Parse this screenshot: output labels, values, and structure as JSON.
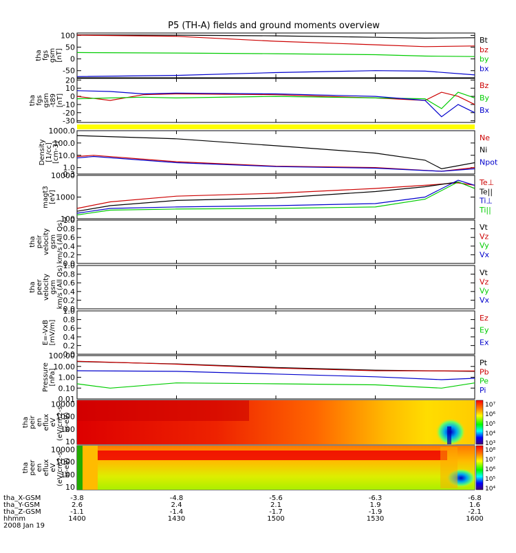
{
  "title": "P5 (TH-A) fields and ground moments overview",
  "chart_data": [
    {
      "id": "fgs_gsm",
      "type": "line",
      "ylabel": [
        "tha",
        "fgs",
        "gsm",
        "[nT]"
      ],
      "ylim": [
        -80,
        110
      ],
      "yticks": [
        100,
        50,
        0,
        -50
      ],
      "yticklabels": [
        "100",
        "50",
        "0",
        "-50"
      ],
      "series": [
        {
          "name": "Bt",
          "color": "#000000",
          "x": [
            1400,
            1430,
            1500,
            1530,
            1545,
            1600
          ],
          "values": [
            102,
            101,
            98,
            92,
            88,
            90
          ]
        },
        {
          "name": "bz",
          "color": "#cc0000",
          "x": [
            1400,
            1430,
            1500,
            1530,
            1545,
            1600
          ],
          "values": [
            101,
            96,
            75,
            60,
            52,
            55
          ]
        },
        {
          "name": "by",
          "color": "#00cc00",
          "x": [
            1400,
            1430,
            1500,
            1530,
            1545,
            1600
          ],
          "values": [
            27,
            25,
            22,
            18,
            12,
            10
          ]
        },
        {
          "name": "bx",
          "color": "#0000cc",
          "x": [
            1400,
            1430,
            1500,
            1530,
            1545,
            1600
          ],
          "values": [
            -75,
            -70,
            -58,
            -50,
            -52,
            -68
          ]
        }
      ]
    },
    {
      "id": "fgs_gsm_t89",
      "type": "line",
      "ylabel": [
        "tha",
        "fgs",
        "gsm",
        "-t89",
        "[nT]"
      ],
      "ylim": [
        -32,
        22
      ],
      "yticks": [
        20,
        10,
        0,
        -10,
        -20,
        -30
      ],
      "yticklabels": [
        "20",
        "10",
        "0",
        "-10",
        "-20",
        "-30"
      ],
      "series": [
        {
          "name": "Bz",
          "color": "#cc0000",
          "x": [
            1400,
            1410,
            1420,
            1430,
            1500,
            1530,
            1545,
            1550,
            1555,
            1600
          ],
          "values": [
            0,
            -5,
            2,
            3,
            2,
            -2,
            -5,
            5,
            0,
            -10
          ]
        },
        {
          "name": "By",
          "color": "#00cc00",
          "x": [
            1400,
            1410,
            1420,
            1430,
            1500,
            1530,
            1545,
            1550,
            1555,
            1600
          ],
          "values": [
            -3,
            -2,
            -1,
            -2,
            0,
            -2,
            -3,
            -15,
            5,
            -2
          ]
        },
        {
          "name": "Bx",
          "color": "#0000cc",
          "x": [
            1400,
            1410,
            1420,
            1430,
            1500,
            1530,
            1545,
            1550,
            1555,
            1600
          ],
          "values": [
            7,
            6,
            3,
            4,
            3,
            0,
            -5,
            -25,
            -10,
            -20
          ]
        }
      ]
    },
    {
      "id": "density",
      "type": "line",
      "log": true,
      "ylabel": [
        "Density",
        "[1/cc]",
        "[cm-3]"
      ],
      "ylim": [
        0.3,
        1000
      ],
      "yticks": [
        1000,
        100,
        10,
        1,
        0.3
      ],
      "yticklabels": [
        "1000.0",
        "100.0",
        "10.0",
        "1.0",
        "0.3"
      ],
      "series": [
        {
          "name": "Ne",
          "color": "#cc0000",
          "x": [
            1400,
            1405,
            1430,
            1500,
            1530,
            1550,
            1600
          ],
          "values": [
            8,
            10,
            3,
            1.3,
            1.0,
            0.5,
            1.0
          ]
        },
        {
          "name": "Ni",
          "color": "#000000",
          "x": [
            1400,
            1430,
            1500,
            1530,
            1545,
            1550,
            1600
          ],
          "values": [
            400,
            220,
            60,
            15,
            4,
            0.8,
            2.5
          ]
        },
        {
          "name": "Npot",
          "color": "#0000cc",
          "x": [
            1400,
            1405,
            1430,
            1500,
            1530,
            1550,
            1600
          ],
          "values": [
            6,
            8,
            2.5,
            1.2,
            0.9,
            0.5,
            0.8
          ]
        }
      ]
    },
    {
      "id": "temperature",
      "type": "line",
      "log": true,
      "ylabel": [
        "magt3",
        "[eV]"
      ],
      "ylim": [
        100,
        10000
      ],
      "yticks": [
        10000,
        1000,
        100
      ],
      "yticklabels": [
        "10000",
        "1000",
        "100"
      ],
      "series": [
        {
          "name": "Te⊥",
          "color": "#cc0000",
          "x": [
            1400,
            1410,
            1430,
            1500,
            1530,
            1545,
            1555,
            1600
          ],
          "values": [
            300,
            600,
            1100,
            1500,
            2500,
            3500,
            4500,
            3500
          ]
        },
        {
          "name": "Te||",
          "color": "#000000",
          "x": [
            1400,
            1410,
            1430,
            1500,
            1530,
            1545,
            1555,
            1600
          ],
          "values": [
            220,
            400,
            700,
            900,
            1800,
            3000,
            5000,
            2500
          ]
        },
        {
          "name": "Ti⊥",
          "color": "#0000cc",
          "x": [
            1400,
            1410,
            1430,
            1500,
            1530,
            1545,
            1555,
            1600
          ],
          "values": [
            180,
            300,
            350,
            400,
            500,
            1000,
            6000,
            3500
          ]
        },
        {
          "name": "Ti||",
          "color": "#00cc00",
          "x": [
            1400,
            1410,
            1430,
            1500,
            1530,
            1545,
            1555,
            1600
          ],
          "values": [
            150,
            250,
            280,
            300,
            350,
            800,
            5000,
            2500
          ]
        }
      ]
    },
    {
      "id": "peir_velocity",
      "type": "line",
      "ylabel": [
        "tha",
        "peir",
        "velocity",
        "gsm",
        "km/s (All Qs)"
      ],
      "ylim": [
        0,
        1
      ],
      "yticks": [
        1.0,
        0.8,
        0.6,
        0.4,
        0.2,
        0.0
      ],
      "yticklabels": [
        "1.0",
        "0.8",
        "0.6",
        "0.4",
        "0.2",
        "0.0"
      ],
      "series": [
        {
          "name": "Vt",
          "color": "#000000",
          "x": [],
          "values": []
        },
        {
          "name": "Vz",
          "color": "#cc0000",
          "x": [],
          "values": []
        },
        {
          "name": "Vy",
          "color": "#00cc00",
          "x": [],
          "values": []
        },
        {
          "name": "Vx",
          "color": "#0000cc",
          "x": [],
          "values": []
        }
      ]
    },
    {
      "id": "peer_velocity",
      "type": "line",
      "ylabel": [
        "tha",
        "peer",
        "velocity",
        "gsm",
        "km/s (All Qs)"
      ],
      "ylim": [
        0,
        1
      ],
      "yticks": [
        1.0,
        0.8,
        0.6,
        0.4,
        0.2,
        0.0
      ],
      "yticklabels": [
        "1.0",
        "0.8",
        "0.6",
        "0.4",
        "0.2",
        "0.0"
      ],
      "series": [
        {
          "name": "Vt",
          "color": "#000000",
          "x": [],
          "values": []
        },
        {
          "name": "Vz",
          "color": "#cc0000",
          "x": [],
          "values": []
        },
        {
          "name": "Vy",
          "color": "#00cc00",
          "x": [],
          "values": []
        },
        {
          "name": "Vx",
          "color": "#0000cc",
          "x": [],
          "values": []
        }
      ]
    },
    {
      "id": "efield",
      "type": "line",
      "ylabel": [
        "E=-VxB",
        "[mV/m]"
      ],
      "ylim": [
        0,
        1
      ],
      "yticks": [
        1.0,
        0.8,
        0.6,
        0.4,
        0.2,
        0.0
      ],
      "yticklabels": [
        "1.0",
        "0.8",
        "0.6",
        "0.4",
        "0.2",
        "0.0"
      ],
      "series": [
        {
          "name": "Ez",
          "color": "#cc0000",
          "x": [],
          "values": []
        },
        {
          "name": "Ey",
          "color": "#00cc00",
          "x": [],
          "values": []
        },
        {
          "name": "Ex",
          "color": "#0000cc",
          "x": [],
          "values": []
        }
      ]
    },
    {
      "id": "pressure",
      "type": "line",
      "log": true,
      "ylabel": [
        "Pressure",
        "[nPa]"
      ],
      "ylim": [
        0.01,
        100
      ],
      "yticks": [
        100,
        10,
        1,
        0.1,
        0.01
      ],
      "yticklabels": [
        "100.00",
        "10.00",
        "1.00",
        "0.10",
        "0.01"
      ],
      "series": [
        {
          "name": "Pt",
          "color": "#000000",
          "x": [
            1400,
            1430,
            1500,
            1530,
            1600
          ],
          "values": [
            28,
            17,
            8,
            4.5,
            3.5
          ]
        },
        {
          "name": "Pb",
          "color": "#cc0000",
          "x": [
            1400,
            1430,
            1500,
            1530,
            1600
          ],
          "values": [
            30,
            16,
            7,
            4,
            3.8
          ]
        },
        {
          "name": "Pe",
          "color": "#00cc00",
          "x": [
            1400,
            1410,
            1430,
            1500,
            1530,
            1550,
            1600
          ],
          "values": [
            0.25,
            0.1,
            0.3,
            0.25,
            0.2,
            0.1,
            0.3
          ]
        },
        {
          "name": "Pi",
          "color": "#0000cc",
          "x": [
            1400,
            1430,
            1500,
            1530,
            1550,
            1600
          ],
          "values": [
            4,
            3.5,
            2,
            1.1,
            0.6,
            0.8
          ]
        }
      ]
    },
    {
      "id": "peir_spectrogram",
      "type": "heatmap",
      "ylabel": [
        "tha",
        "peir",
        "en",
        "eflux",
        "eV",
        "(eV/cm2-s-",
        "sr-eV)"
      ],
      "ylim": [
        6,
        20000
      ],
      "yticks": [
        10000,
        1000,
        100,
        10
      ],
      "yticklabels": [
        "10000",
        "1000",
        "100",
        "10"
      ],
      "colorbar": {
        "labels": [
          "10⁷",
          "10⁶",
          "10⁵",
          "10⁴",
          "10³"
        ]
      }
    },
    {
      "id": "peer_spectrogram",
      "type": "heatmap",
      "ylabel": [
        "tha",
        "peer",
        "en",
        "eflux",
        "eV",
        "(eV/cm2-s-",
        "sr-eV)"
      ],
      "ylim": [
        6,
        20000
      ],
      "yticks": [
        10000,
        1000,
        100,
        10
      ],
      "yticklabels": [
        "10000",
        "1000",
        "100",
        "10"
      ],
      "colorbar": {
        "labels": [
          "10⁸",
          "10⁷",
          "10⁶",
          "10⁵",
          "10⁴"
        ]
      }
    }
  ],
  "xaxis": {
    "rows": [
      {
        "label": "tha_X-GSM",
        "values": [
          "-3.8",
          "-4.8",
          "-5.6",
          "-6.3",
          "-6.8"
        ]
      },
      {
        "label": "tha_Y-GSM",
        "values": [
          "2.6",
          "2.4",
          "2.1",
          "1.9",
          "1.6"
        ]
      },
      {
        "label": "tha_Z-GSM",
        "values": [
          "-1.1",
          "-1.4",
          "-1.7",
          "-1.9",
          "-2.1"
        ]
      },
      {
        "label": "hhmm",
        "values": [
          "1400",
          "1430",
          "1500",
          "1530",
          "1600"
        ]
      }
    ],
    "date": "2008 Jan 19",
    "ticks": [
      1400,
      1430,
      1500,
      1530,
      1600
    ]
  }
}
